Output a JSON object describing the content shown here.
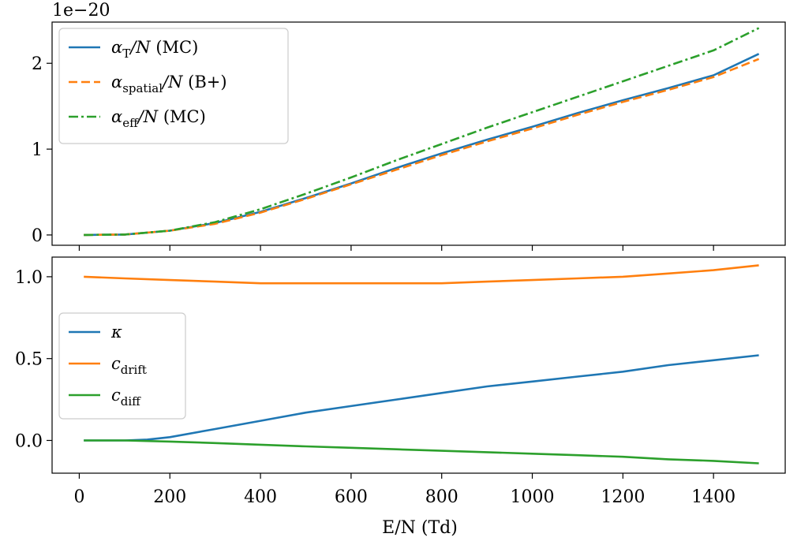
{
  "chart_data": [
    {
      "type": "line",
      "offset_text": "1e−20",
      "xlabel": "",
      "ylabel": "",
      "xlim": [
        -60,
        1560
      ],
      "ylim": [
        -0.12,
        2.48
      ],
      "yticks": [
        {
          "value": 0,
          "label": "0"
        },
        {
          "value": 1,
          "label": "1"
        },
        {
          "value": 2,
          "label": "2"
        }
      ],
      "xticks": [
        0,
        200,
        400,
        600,
        800,
        1000,
        1200,
        1400
      ],
      "legend_position": "upper-left",
      "series": [
        {
          "name": "alpha_T/N (MC)",
          "legend": {
            "symbol": "α",
            "sub": "T",
            "rest": "/N",
            "tag": " (MC)"
          },
          "color": "#1f77b4",
          "style": "solid",
          "x": [
            10,
            100,
            200,
            300,
            400,
            500,
            600,
            700,
            800,
            900,
            1000,
            1100,
            1200,
            1300,
            1400,
            1500
          ],
          "values": [
            0.0,
            0.005,
            0.05,
            0.14,
            0.27,
            0.43,
            0.6,
            0.78,
            0.95,
            1.11,
            1.26,
            1.42,
            1.57,
            1.71,
            1.86,
            2.11
          ]
        },
        {
          "name": "alpha_spatial/N (B+)",
          "legend": {
            "symbol": "α",
            "sub": "spatial",
            "rest": "/N",
            "tag": " (B+)"
          },
          "color": "#ff7f0e",
          "style": "dashed",
          "x": [
            10,
            100,
            200,
            300,
            400,
            500,
            600,
            700,
            800,
            900,
            1000,
            1100,
            1200,
            1300,
            1400,
            1500
          ],
          "values": [
            0.0,
            0.005,
            0.05,
            0.13,
            0.26,
            0.42,
            0.59,
            0.76,
            0.93,
            1.09,
            1.24,
            1.4,
            1.55,
            1.69,
            1.84,
            2.05
          ]
        },
        {
          "name": "alpha_eff/N (MC)",
          "legend": {
            "symbol": "α",
            "sub": "eff",
            "rest": "/N",
            "tag": " (MC)"
          },
          "color": "#2ca02c",
          "style": "dashdot",
          "x": [
            10,
            100,
            200,
            300,
            400,
            500,
            600,
            700,
            800,
            900,
            1000,
            1100,
            1200,
            1300,
            1400,
            1500
          ],
          "values": [
            0.0,
            0.005,
            0.05,
            0.15,
            0.3,
            0.48,
            0.67,
            0.87,
            1.06,
            1.25,
            1.43,
            1.61,
            1.79,
            1.97,
            2.15,
            2.41
          ]
        }
      ]
    },
    {
      "type": "line",
      "xlabel": "E/N (Td)",
      "ylabel": "",
      "xlim": [
        -60,
        1560
      ],
      "ylim": [
        -0.2,
        1.12
      ],
      "yticks": [
        {
          "value": 0,
          "label": "0.0"
        },
        {
          "value": 0.5,
          "label": "0.5"
        },
        {
          "value": 1,
          "label": "1.0"
        }
      ],
      "xticks": [
        0,
        200,
        400,
        600,
        800,
        1000,
        1200,
        1400
      ],
      "legend_position": "center-left",
      "series": [
        {
          "name": "kappa",
          "legend": {
            "symbol": "κ",
            "sub": "",
            "rest": "",
            "tag": ""
          },
          "color": "#1f77b4",
          "style": "solid",
          "x": [
            10,
            100,
            150,
            200,
            300,
            400,
            500,
            600,
            700,
            800,
            900,
            1000,
            1100,
            1200,
            1300,
            1400,
            1500
          ],
          "values": [
            0.0,
            0.0,
            0.005,
            0.02,
            0.07,
            0.12,
            0.17,
            0.21,
            0.25,
            0.29,
            0.33,
            0.36,
            0.39,
            0.42,
            0.46,
            0.49,
            0.52
          ]
        },
        {
          "name": "c_drift",
          "legend": {
            "symbol": "c",
            "sub": "drift",
            "rest": "",
            "tag": ""
          },
          "color": "#ff7f0e",
          "style": "solid",
          "x": [
            10,
            100,
            200,
            300,
            400,
            500,
            600,
            700,
            800,
            900,
            1000,
            1100,
            1200,
            1300,
            1400,
            1500
          ],
          "values": [
            1.0,
            0.99,
            0.98,
            0.97,
            0.96,
            0.96,
            0.96,
            0.96,
            0.96,
            0.97,
            0.98,
            0.99,
            1.0,
            1.02,
            1.04,
            1.07
          ]
        },
        {
          "name": "c_diff",
          "legend": {
            "symbol": "c",
            "sub": "diff",
            "rest": "",
            "tag": ""
          },
          "color": "#2ca02c",
          "style": "solid",
          "x": [
            10,
            100,
            200,
            300,
            400,
            500,
            600,
            700,
            800,
            900,
            1000,
            1100,
            1200,
            1300,
            1400,
            1500
          ],
          "values": [
            0.0,
            0.0,
            -0.007,
            -0.016,
            -0.026,
            -0.036,
            -0.045,
            -0.054,
            -0.063,
            -0.072,
            -0.081,
            -0.09,
            -0.1,
            -0.115,
            -0.125,
            -0.14
          ]
        }
      ]
    }
  ]
}
